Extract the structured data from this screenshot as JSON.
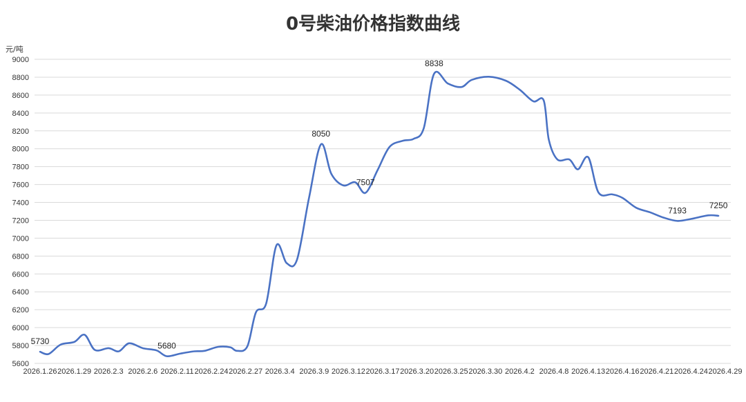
{
  "chart_data": {
    "type": "line",
    "title": "0号柴油价格指数曲线",
    "ylabel": "元/吨",
    "xlabel": "",
    "ylim": [
      5600,
      9000
    ],
    "ytick_step": 200,
    "grid": true,
    "line_color": "#4a72c4",
    "grid_color": "#d9d9d9",
    "x_ticks": [
      "2026.1.26",
      "2026.1.29",
      "2026.2.3",
      "2026.2.6",
      "2026.2.11",
      "2026.2.24",
      "2026.2.27",
      "2026.3.4",
      "2026.3.9",
      "2026.3.12",
      "2026.3.17",
      "2026.3.20",
      "2026.3.25",
      "2026.3.30",
      "2026.4.2",
      "2026.4.8",
      "2026.4.13",
      "2026.4.16",
      "2026.4.21",
      "2026.4.24",
      "2026.4.29"
    ],
    "series": [
      {
        "values": [
          {
            "x": 0.0,
            "y": 5730
          },
          {
            "x": 0.25,
            "y": 5705
          },
          {
            "x": 0.6,
            "y": 5810
          },
          {
            "x": 1.0,
            "y": 5840
          },
          {
            "x": 1.3,
            "y": 5920
          },
          {
            "x": 1.6,
            "y": 5750
          },
          {
            "x": 2.0,
            "y": 5770
          },
          {
            "x": 2.3,
            "y": 5735
          },
          {
            "x": 2.6,
            "y": 5825
          },
          {
            "x": 3.0,
            "y": 5770
          },
          {
            "x": 3.4,
            "y": 5745
          },
          {
            "x": 3.7,
            "y": 5680
          },
          {
            "x": 4.1,
            "y": 5710
          },
          {
            "x": 4.5,
            "y": 5735
          },
          {
            "x": 4.8,
            "y": 5740
          },
          {
            "x": 5.2,
            "y": 5785
          },
          {
            "x": 5.55,
            "y": 5780
          },
          {
            "x": 5.75,
            "y": 5740
          },
          {
            "x": 6.05,
            "y": 5790
          },
          {
            "x": 6.3,
            "y": 6170
          },
          {
            "x": 6.6,
            "y": 6270
          },
          {
            "x": 6.9,
            "y": 6920
          },
          {
            "x": 7.2,
            "y": 6720
          },
          {
            "x": 7.5,
            "y": 6760
          },
          {
            "x": 7.85,
            "y": 7450
          },
          {
            "x": 8.2,
            "y": 8050
          },
          {
            "x": 8.5,
            "y": 7720
          },
          {
            "x": 8.85,
            "y": 7590
          },
          {
            "x": 9.2,
            "y": 7625
          },
          {
            "x": 9.5,
            "y": 7507
          },
          {
            "x": 9.85,
            "y": 7760
          },
          {
            "x": 10.2,
            "y": 8020
          },
          {
            "x": 10.6,
            "y": 8090
          },
          {
            "x": 10.9,
            "y": 8110
          },
          {
            "x": 11.2,
            "y": 8230
          },
          {
            "x": 11.5,
            "y": 8838
          },
          {
            "x": 11.9,
            "y": 8730
          },
          {
            "x": 12.3,
            "y": 8690
          },
          {
            "x": 12.6,
            "y": 8770
          },
          {
            "x": 13.1,
            "y": 8805
          },
          {
            "x": 13.6,
            "y": 8760
          },
          {
            "x": 14.0,
            "y": 8660
          },
          {
            "x": 14.4,
            "y": 8530
          },
          {
            "x": 14.7,
            "y": 8540
          },
          {
            "x": 14.85,
            "y": 8100
          },
          {
            "x": 15.1,
            "y": 7880
          },
          {
            "x": 15.45,
            "y": 7880
          },
          {
            "x": 15.7,
            "y": 7770
          },
          {
            "x": 16.0,
            "y": 7905
          },
          {
            "x": 16.3,
            "y": 7510
          },
          {
            "x": 16.7,
            "y": 7490
          },
          {
            "x": 17.0,
            "y": 7450
          },
          {
            "x": 17.4,
            "y": 7340
          },
          {
            "x": 17.8,
            "y": 7290
          },
          {
            "x": 18.2,
            "y": 7230
          },
          {
            "x": 18.6,
            "y": 7193
          },
          {
            "x": 19.0,
            "y": 7215
          },
          {
            "x": 19.5,
            "y": 7255
          },
          {
            "x": 19.8,
            "y": 7250
          }
        ]
      }
    ],
    "annotations": [
      {
        "x": 0.0,
        "y": 5730,
        "label": "5730"
      },
      {
        "x": 3.7,
        "y": 5680,
        "label": "5680"
      },
      {
        "x": 8.2,
        "y": 8050,
        "label": "8050"
      },
      {
        "x": 9.5,
        "y": 7507,
        "label": "7507"
      },
      {
        "x": 11.5,
        "y": 8838,
        "label": "8838"
      },
      {
        "x": 18.6,
        "y": 7193,
        "label": "7193"
      },
      {
        "x": 19.8,
        "y": 7250,
        "label": "7250"
      }
    ]
  }
}
